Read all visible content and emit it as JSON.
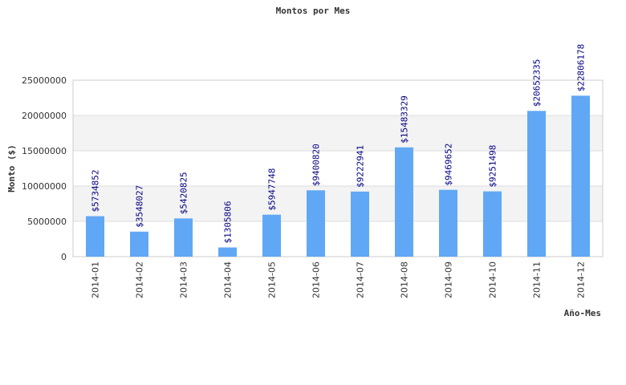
{
  "chart_data": {
    "type": "bar",
    "title": "Montos por Mes",
    "xlabel": "Año-Mes",
    "ylabel": "Monto ($)",
    "ylim": [
      0,
      25000000
    ],
    "yticks": [
      0,
      5000000,
      10000000,
      15000000,
      20000000,
      25000000
    ],
    "grid": "alternating horizontal bands",
    "categories": [
      "2014-01",
      "2014-02",
      "2014-03",
      "2014-04",
      "2014-05",
      "2014-06",
      "2014-07",
      "2014-08",
      "2014-09",
      "2014-10",
      "2014-11",
      "2014-12"
    ],
    "values": [
      5734852,
      3548027,
      5420825,
      1305806,
      5947748,
      9400820,
      9222941,
      15483329,
      9469652,
      9251498,
      20652335,
      22806178
    ],
    "data_labels": [
      "$5734852",
      "$3548027",
      "$5420825",
      "$1305806",
      "$5947748",
      "$9400820",
      "$9222941",
      "$15483329",
      "$9469652",
      "$9251498",
      "$20652335",
      "$22806178"
    ],
    "colors": {
      "bar": "#60a8f5",
      "label": "#000080",
      "band": "#f3f3f3",
      "grid": "#dddddd"
    }
  }
}
